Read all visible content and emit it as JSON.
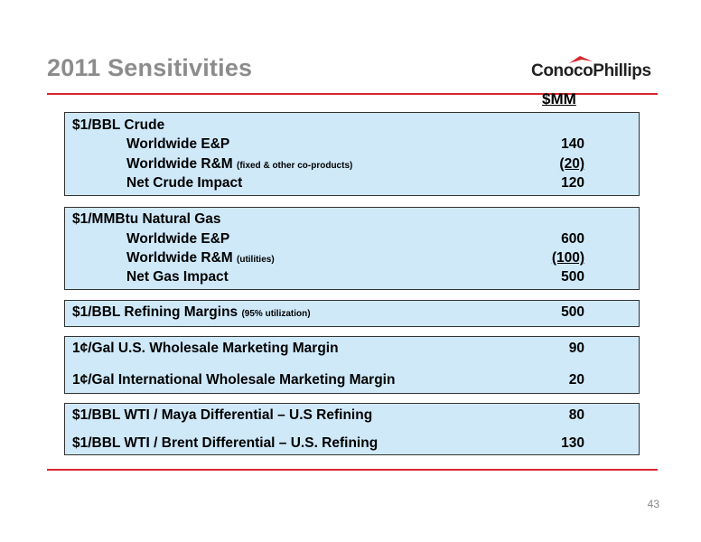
{
  "slide": {
    "title": "2011 Sensitivities",
    "logo_text": "ConocoPhillips",
    "unit_header": "$MM",
    "page_number": "43",
    "accent_color": "#d9272e",
    "box_color": "#cfe9f9"
  },
  "crude": {
    "heading": "$1/BBL Crude",
    "rows": [
      {
        "label": "Worldwide E&P",
        "note": "",
        "value": "140"
      },
      {
        "label": "Worldwide R&M",
        "note": "(fixed & other co-products)",
        "value": "(20)"
      },
      {
        "label": "Net Crude Impact",
        "note": "",
        "value": "120"
      }
    ]
  },
  "gas": {
    "heading": "$1/MMBtu Natural Gas",
    "rows": [
      {
        "label": "Worldwide E&P",
        "note": "",
        "value": "600"
      },
      {
        "label": "Worldwide R&M",
        "note": "(utilities)",
        "value": "(100)"
      },
      {
        "label": "Net Gas Impact",
        "note": "",
        "value": "500"
      }
    ]
  },
  "refining": {
    "label": "$1/BBL  Refining Margins",
    "note": "(95% utilization)",
    "value": "500"
  },
  "marketing": {
    "rows": [
      {
        "label": "1¢/Gal  U.S. Wholesale Marketing Margin",
        "value": "90"
      },
      {
        "label": "1¢/Gal  International  Wholesale Marketing Margin",
        "value": "20"
      }
    ]
  },
  "differentials": {
    "rows": [
      {
        "label": "$1/BBL WTI / Maya Differential – U.S Refining",
        "value": "80"
      },
      {
        "label": "$1/BBL WTI / Brent Differential – U.S. Refining",
        "value": "130"
      }
    ]
  }
}
